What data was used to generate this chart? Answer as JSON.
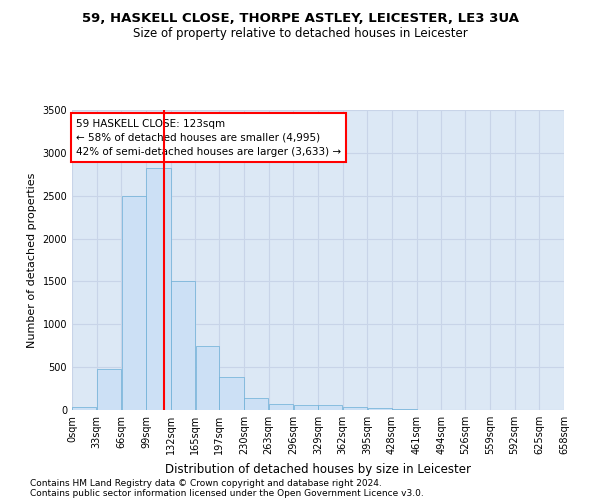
{
  "title1": "59, HASKELL CLOSE, THORPE ASTLEY, LEICESTER, LE3 3UA",
  "title2": "Size of property relative to detached houses in Leicester",
  "xlabel": "Distribution of detached houses by size in Leicester",
  "ylabel": "Number of detached properties",
  "bar_color": "#cce0f5",
  "bar_edge_color": "#6aaed6",
  "grid_color": "#c8d4e8",
  "background_color": "#dce8f5",
  "vline_x": 123,
  "vline_color": "red",
  "annotation_line1": "59 HASKELL CLOSE: 123sqm",
  "annotation_line2": "← 58% of detached houses are smaller (4,995)",
  "annotation_line3": "42% of semi-detached houses are larger (3,633) →",
  "annotation_box_color": "white",
  "annotation_border_color": "red",
  "bin_edges": [
    0,
    33,
    66,
    99,
    132,
    165,
    197,
    230,
    263,
    296,
    329,
    362,
    395,
    428,
    461,
    494,
    526,
    559,
    592,
    625,
    658
  ],
  "bar_heights": [
    30,
    480,
    2500,
    2820,
    1510,
    750,
    385,
    140,
    75,
    55,
    55,
    30,
    25,
    10,
    5,
    5,
    3,
    2,
    2,
    1
  ],
  "ylim": [
    0,
    3500
  ],
  "yticks": [
    0,
    500,
    1000,
    1500,
    2000,
    2500,
    3000,
    3500
  ],
  "footnote1": "Contains HM Land Registry data © Crown copyright and database right 2024.",
  "footnote2": "Contains public sector information licensed under the Open Government Licence v3.0.",
  "title1_fontsize": 9.5,
  "title2_fontsize": 8.5,
  "ylabel_fontsize": 8,
  "xlabel_fontsize": 8.5,
  "tick_fontsize": 7,
  "footnote_fontsize": 6.5
}
